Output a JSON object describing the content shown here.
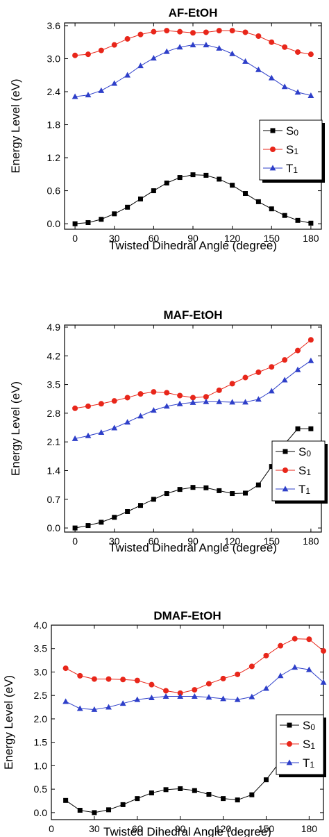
{
  "chart_data": [
    {
      "type": "line",
      "title": "AF-EtOH",
      "xlabel": "Twisted Dihedral Angle (degree)",
      "ylabel": "Energy Level (eV)",
      "xlim": [
        -8,
        188
      ],
      "ylim": [
        -0.1,
        3.65
      ],
      "xticks": [
        0,
        30,
        60,
        90,
        120,
        150,
        180
      ],
      "yticks": [
        0.0,
        0.6,
        1.2,
        1.8,
        2.4,
        3.0,
        3.6
      ],
      "ytick_labels": [
        "0.0",
        "0.6",
        "1.2",
        "1.8",
        "2.4",
        "3.0",
        "3.6"
      ],
      "legend_position": "center-right",
      "series": [
        {
          "name": "S",
          "subscript": "0",
          "color": "#000000",
          "marker": "square",
          "x": [
            0,
            10,
            20,
            30,
            40,
            50,
            60,
            70,
            80,
            90,
            100,
            110,
            120,
            130,
            140,
            150,
            160,
            170,
            180
          ],
          "y": [
            0.0,
            0.02,
            0.08,
            0.18,
            0.3,
            0.45,
            0.6,
            0.74,
            0.84,
            0.89,
            0.88,
            0.81,
            0.7,
            0.55,
            0.4,
            0.27,
            0.15,
            0.06,
            0.01
          ]
        },
        {
          "name": "S",
          "subscript": "1",
          "color": "#e8261a",
          "marker": "circle",
          "x": [
            0,
            10,
            20,
            30,
            40,
            50,
            60,
            70,
            80,
            90,
            100,
            110,
            120,
            130,
            140,
            150,
            160,
            170,
            180
          ],
          "y": [
            3.06,
            3.08,
            3.15,
            3.25,
            3.36,
            3.44,
            3.49,
            3.51,
            3.49,
            3.47,
            3.48,
            3.51,
            3.51,
            3.48,
            3.41,
            3.3,
            3.21,
            3.12,
            3.08
          ]
        },
        {
          "name": "T",
          "subscript": "1",
          "color": "#2e3fc9",
          "marker": "triangle",
          "x": [
            0,
            10,
            20,
            30,
            40,
            50,
            60,
            70,
            80,
            90,
            100,
            110,
            120,
            130,
            140,
            150,
            160,
            170,
            180
          ],
          "y": [
            2.31,
            2.34,
            2.42,
            2.55,
            2.7,
            2.87,
            3.01,
            3.13,
            3.21,
            3.25,
            3.25,
            3.19,
            3.09,
            2.95,
            2.8,
            2.65,
            2.49,
            2.39,
            2.33
          ]
        }
      ]
    },
    {
      "type": "line",
      "title": "MAF-EtOH",
      "xlabel": "Twisted Dihedral Angle (degree)",
      "ylabel": "Energy Level (eV)",
      "xlim": [
        -8,
        188
      ],
      "ylim": [
        -0.1,
        4.95
      ],
      "xticks": [
        0,
        30,
        60,
        90,
        120,
        150,
        180
      ],
      "yticks": [
        0.0,
        0.7,
        1.4,
        2.1,
        2.8,
        3.5,
        4.2,
        4.9
      ],
      "ytick_labels": [
        "0.0",
        "0.7",
        "1.4",
        "2.1",
        "2.8",
        "3.5",
        "4.2",
        "4.9"
      ],
      "legend_position": "lower-right",
      "series": [
        {
          "name": "S",
          "subscript": "0",
          "color": "#000000",
          "marker": "square",
          "x": [
            0,
            10,
            20,
            30,
            40,
            50,
            60,
            70,
            80,
            90,
            100,
            110,
            120,
            130,
            140,
            150,
            160,
            170,
            180
          ],
          "y": [
            0.0,
            0.06,
            0.14,
            0.26,
            0.4,
            0.55,
            0.7,
            0.84,
            0.94,
            0.99,
            0.98,
            0.91,
            0.84,
            0.85,
            1.05,
            1.5,
            2.05,
            2.42,
            2.42
          ]
        },
        {
          "name": "S",
          "subscript": "1",
          "color": "#e8261a",
          "marker": "circle",
          "x": [
            0,
            10,
            20,
            30,
            40,
            50,
            60,
            70,
            80,
            90,
            100,
            110,
            120,
            130,
            140,
            150,
            160,
            170,
            180
          ],
          "y": [
            2.92,
            2.97,
            3.03,
            3.1,
            3.18,
            3.27,
            3.32,
            3.3,
            3.23,
            3.18,
            3.2,
            3.36,
            3.52,
            3.67,
            3.8,
            3.93,
            4.1,
            4.33,
            4.59
          ]
        },
        {
          "name": "T",
          "subscript": "1",
          "color": "#2e3fc9",
          "marker": "triangle",
          "x": [
            0,
            10,
            20,
            30,
            40,
            50,
            60,
            70,
            80,
            90,
            100,
            110,
            120,
            130,
            140,
            150,
            160,
            170,
            180
          ],
          "y": [
            2.18,
            2.25,
            2.33,
            2.44,
            2.58,
            2.73,
            2.87,
            2.97,
            3.03,
            3.06,
            3.08,
            3.08,
            3.07,
            3.07,
            3.14,
            3.34,
            3.61,
            3.86,
            4.08
          ]
        }
      ]
    },
    {
      "type": "line",
      "title": "DMAF-EtOH",
      "xlabel": "Twisted Dihedral Angle (degree)",
      "ylabel": "Energy Level (eV)",
      "xlim": [
        0,
        190
      ],
      "ylim": [
        -0.15,
        4.0
      ],
      "xticks": [
        0,
        30,
        60,
        90,
        120,
        150,
        180
      ],
      "yticks": [
        0.0,
        0.5,
        1.0,
        1.5,
        2.0,
        2.5,
        3.0,
        3.5,
        4.0
      ],
      "ytick_labels": [
        "0.0",
        "0.5",
        "1.0",
        "1.5",
        "2.0",
        "2.5",
        "3.0",
        "3.5",
        "4.0"
      ],
      "legend_position": "center-right",
      "series": [
        {
          "name": "S",
          "subscript": "0",
          "color": "#000000",
          "marker": "square",
          "x": [
            10,
            20,
            30,
            40,
            50,
            60,
            70,
            80,
            90,
            100,
            110,
            120,
            130,
            140,
            150,
            160,
            170,
            180,
            190
          ],
          "y": [
            0.26,
            0.05,
            0.0,
            0.06,
            0.17,
            0.3,
            0.42,
            0.49,
            0.51,
            0.47,
            0.39,
            0.3,
            0.27,
            0.38,
            0.7,
            1.1,
            1.3,
            1.15,
            0.82
          ]
        },
        {
          "name": "S",
          "subscript": "1",
          "color": "#e8261a",
          "marker": "circle",
          "x": [
            10,
            20,
            30,
            40,
            50,
            60,
            70,
            80,
            90,
            100,
            110,
            120,
            130,
            140,
            150,
            160,
            170,
            180,
            190
          ],
          "y": [
            3.08,
            2.92,
            2.85,
            2.85,
            2.84,
            2.82,
            2.73,
            2.6,
            2.55,
            2.62,
            2.75,
            2.86,
            2.95,
            3.12,
            3.35,
            3.56,
            3.71,
            3.7,
            3.45
          ]
        },
        {
          "name": "T",
          "subscript": "1",
          "color": "#2e3fc9",
          "marker": "triangle",
          "x": [
            10,
            20,
            30,
            40,
            50,
            60,
            70,
            80,
            90,
            100,
            110,
            120,
            130,
            140,
            150,
            160,
            170,
            180,
            190
          ],
          "y": [
            2.37,
            2.22,
            2.2,
            2.25,
            2.33,
            2.41,
            2.45,
            2.48,
            2.48,
            2.48,
            2.46,
            2.43,
            2.41,
            2.47,
            2.65,
            2.92,
            3.1,
            3.05,
            2.78
          ]
        }
      ]
    }
  ]
}
